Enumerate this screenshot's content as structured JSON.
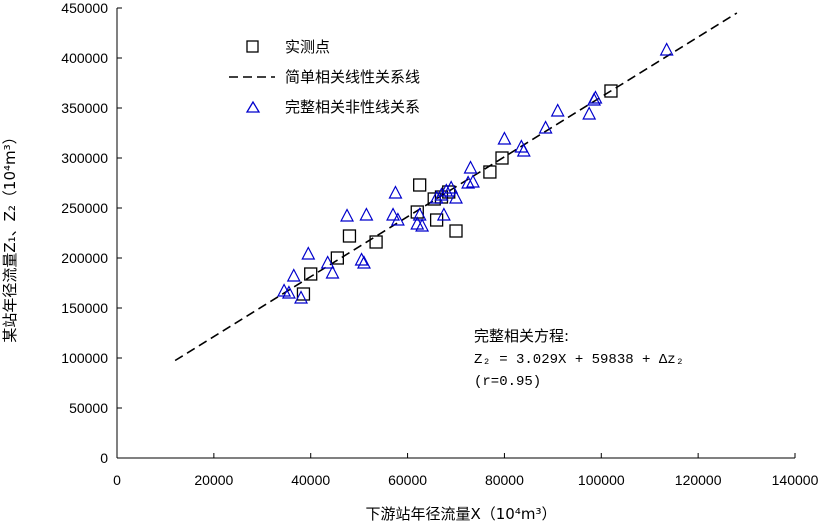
{
  "chart_data": {
    "type": "scatter",
    "xlabel": "下游站年径流量X（10⁴m³）",
    "ylabel": "某站年径流量Z₁、Z₂（10⁴m³）",
    "xlim": [
      0,
      140000
    ],
    "ylim": [
      0,
      450000
    ],
    "x_ticks": [
      0,
      20000,
      40000,
      60000,
      80000,
      100000,
      120000,
      140000
    ],
    "y_ticks": [
      0,
      50000,
      100000,
      150000,
      200000,
      250000,
      300000,
      350000,
      400000,
      450000
    ],
    "x_tick_labels": [
      "0",
      "20000",
      "40000",
      "60000",
      "80000",
      "100000",
      "120000",
      "140000"
    ],
    "y_tick_labels": [
      "0",
      "50000",
      "100000",
      "150000",
      "200000",
      "250000",
      "300000",
      "350000",
      "400000",
      "450000"
    ],
    "grid": false,
    "legend_position": "top-left",
    "series": [
      {
        "name": "实测点",
        "marker": "square",
        "color": "#000000",
        "points": [
          [
            38500,
            164000
          ],
          [
            40000,
            184000
          ],
          [
            45500,
            200000
          ],
          [
            48000,
            222000
          ],
          [
            53500,
            216000
          ],
          [
            62000,
            246000
          ],
          [
            62500,
            273000
          ],
          [
            65500,
            259000
          ],
          [
            66000,
            238000
          ],
          [
            67000,
            261000
          ],
          [
            68500,
            266000
          ],
          [
            70000,
            227000
          ],
          [
            77000,
            286000
          ],
          [
            79500,
            300000
          ],
          [
            102000,
            367000
          ]
        ]
      },
      {
        "name": "简单相关线性关系线",
        "type": "line",
        "style": "dashed",
        "color": "#000000",
        "points": [
          [
            12000,
            97500
          ],
          [
            128000,
            445000
          ]
        ]
      },
      {
        "name": "完整相关非性线关系",
        "marker": "triangle",
        "color": "#0000cc",
        "points": [
          [
            34500,
            167000
          ],
          [
            35500,
            165000
          ],
          [
            36500,
            182000
          ],
          [
            38000,
            160000
          ],
          [
            39500,
            204000
          ],
          [
            43500,
            195000
          ],
          [
            44500,
            185000
          ],
          [
            47500,
            242000
          ],
          [
            50500,
            198000
          ],
          [
            51000,
            195000
          ],
          [
            51500,
            243000
          ],
          [
            57000,
            243000
          ],
          [
            57500,
            265000
          ],
          [
            58000,
            238000
          ],
          [
            62000,
            234000
          ],
          [
            62500,
            243000
          ],
          [
            63000,
            232000
          ],
          [
            66000,
            260000
          ],
          [
            67000,
            263000
          ],
          [
            67500,
            243000
          ],
          [
            68000,
            267000
          ],
          [
            69000,
            270000
          ],
          [
            70000,
            260000
          ],
          [
            72500,
            275000
          ],
          [
            73000,
            290000
          ],
          [
            73500,
            276000
          ],
          [
            80000,
            319000
          ],
          [
            83500,
            311000
          ],
          [
            84000,
            307000
          ],
          [
            88500,
            330000
          ],
          [
            91000,
            347000
          ],
          [
            97500,
            344000
          ],
          [
            98500,
            358000
          ],
          [
            98800,
            360000
          ],
          [
            113500,
            408000
          ]
        ]
      }
    ],
    "annotation": {
      "title": "完整相关方程:",
      "equation": "Z₂ = 3.029X + 59838 + Δz₂",
      "r": "(r=0.95)"
    }
  }
}
